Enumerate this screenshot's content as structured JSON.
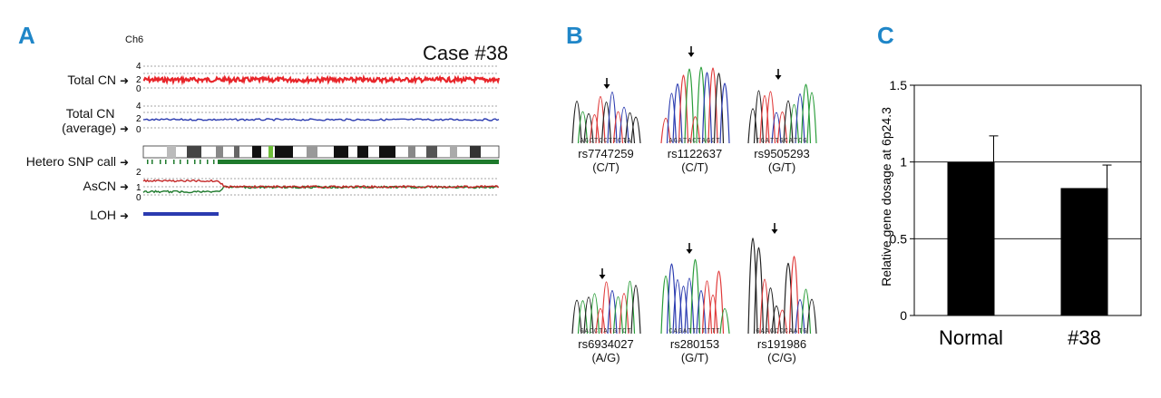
{
  "panels": {
    "a": "A",
    "b": "B",
    "c": "C"
  },
  "panel_a": {
    "chromosome": "Ch6",
    "case_title": "Case #38",
    "tracks": [
      {
        "label": "Total CN",
        "ticks": [
          "4",
          "2",
          "0"
        ]
      },
      {
        "label": "Total CN",
        "label2": "(average)",
        "ticks": [
          "4",
          "2",
          "0"
        ]
      },
      {
        "label": "Hetero SNP call"
      },
      {
        "label": "AsCN",
        "ticks": [
          "2",
          "1",
          "0"
        ]
      },
      {
        "label": "LOH"
      }
    ],
    "colors": {
      "total_cn": "#e8262b",
      "average": "#2b3bb0",
      "snp": "#1e7a2c",
      "loh": "#2b3bb0"
    }
  },
  "panel_b": {
    "snps": [
      {
        "id": "rs7747259",
        "allele": "(C/T)",
        "seq": "AGCTCCTTCTA"
      },
      {
        "id": "rs1122637",
        "allele": "(C/T)",
        "seq": "AGATACTAGGT"
      },
      {
        "id": "rs9505293",
        "allele": "(G/T)",
        "seq": "TGATTGCATCG"
      },
      {
        "id": "rs6934027",
        "allele": "(A/G)",
        "seq": "GACCTATGTCT"
      },
      {
        "id": "rs280153",
        "allele": "(G/T)",
        "seq": "CAGATTTTTTT"
      },
      {
        "id": "rs191986",
        "allele": "(C/G)",
        "seq": "GAAGCCCAATG"
      }
    ]
  },
  "chart_data": {
    "type": "bar",
    "categories": [
      "Normal",
      "#38"
    ],
    "values": [
      1.0,
      0.83
    ],
    "errors": [
      0.17,
      0.15
    ],
    "ylabel": "Relative gene dosage at 6p24.3",
    "ylim": [
      0,
      1.5
    ],
    "yticks": [
      "0",
      "0.5",
      "1",
      "1.5"
    ],
    "bar_color": "#000000"
  }
}
